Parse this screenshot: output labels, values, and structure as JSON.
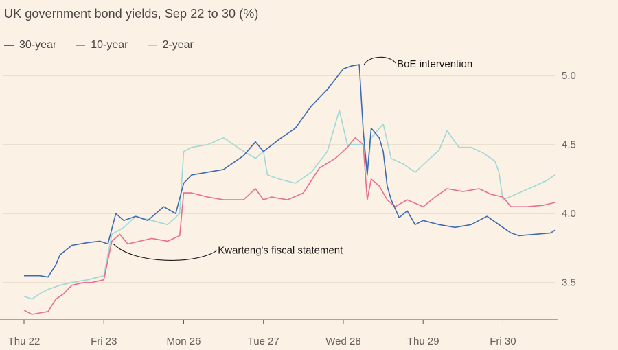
{
  "chart_data": {
    "type": "line",
    "title": "UK government bond yields, Sep 22 to 30 (%)",
    "xlabel": "",
    "ylabel": "",
    "x_ticks": [
      "Thu 22",
      "Fri 23",
      "Mon 26",
      "Tue 27",
      "Wed 28",
      "Thu 29",
      "Fri 30"
    ],
    "y_ticks": [
      "3.5",
      "4.0",
      "4.5",
      "5.0"
    ],
    "ylim": [
      3.23,
      5.2
    ],
    "grid": true,
    "legend_position": "top-left",
    "series": [
      {
        "name": "30-year",
        "color": "#3d6bb3",
        "x": [
          0,
          0.1,
          0.2,
          0.3,
          0.4,
          0.45,
          0.6,
          0.8,
          0.95,
          1.05,
          1.15,
          1.25,
          1.4,
          1.55,
          1.75,
          1.9,
          2.0,
          2.1,
          2.3,
          2.5,
          2.75,
          2.9,
          3.0,
          3.2,
          3.4,
          3.6,
          3.8,
          4.0,
          4.1,
          4.2,
          4.25,
          4.3,
          4.35,
          4.45,
          4.5,
          4.55,
          4.6,
          4.7,
          4.8,
          4.9,
          5.0,
          5.2,
          5.4,
          5.6,
          5.8,
          6.0,
          6.1,
          6.2,
          6.4,
          6.6,
          6.65
        ],
        "values": [
          3.55,
          3.55,
          3.55,
          3.54,
          3.63,
          3.7,
          3.77,
          3.79,
          3.8,
          3.78,
          4.0,
          3.95,
          3.98,
          3.95,
          4.05,
          4.0,
          4.22,
          4.28,
          4.3,
          4.32,
          4.42,
          4.52,
          4.45,
          4.54,
          4.62,
          4.78,
          4.9,
          5.05,
          5.07,
          5.08,
          4.6,
          4.28,
          4.62,
          4.55,
          4.45,
          4.2,
          4.1,
          3.97,
          4.02,
          3.92,
          3.95,
          3.92,
          3.9,
          3.92,
          3.98,
          3.9,
          3.86,
          3.84,
          3.85,
          3.86,
          3.88
        ]
      },
      {
        "name": "10-year",
        "color": "#e86f8d",
        "x": [
          0,
          0.1,
          0.2,
          0.3,
          0.4,
          0.5,
          0.6,
          0.75,
          0.85,
          1.0,
          1.1,
          1.2,
          1.3,
          1.45,
          1.6,
          1.8,
          1.95,
          2.0,
          2.1,
          2.3,
          2.5,
          2.75,
          2.9,
          3.0,
          3.1,
          3.3,
          3.5,
          3.7,
          3.9,
          4.05,
          4.15,
          4.25,
          4.3,
          4.35,
          4.45,
          4.55,
          4.65,
          4.8,
          5.0,
          5.15,
          5.3,
          5.5,
          5.7,
          5.85,
          6.0,
          6.1,
          6.3,
          6.5,
          6.65
        ],
        "values": [
          3.3,
          3.27,
          3.28,
          3.29,
          3.38,
          3.42,
          3.48,
          3.5,
          3.5,
          3.52,
          3.8,
          3.85,
          3.78,
          3.8,
          3.82,
          3.8,
          3.84,
          4.15,
          4.15,
          4.12,
          4.1,
          4.1,
          4.18,
          4.1,
          4.12,
          4.1,
          4.15,
          4.33,
          4.4,
          4.48,
          4.55,
          4.5,
          4.1,
          4.25,
          4.2,
          4.1,
          4.05,
          4.1,
          4.05,
          4.12,
          4.18,
          4.16,
          4.18,
          4.14,
          4.12,
          4.05,
          4.05,
          4.06,
          4.08
        ]
      },
      {
        "name": "2-year",
        "color": "#9ed9d8",
        "x": [
          0,
          0.1,
          0.2,
          0.3,
          0.45,
          0.6,
          0.8,
          1.0,
          1.1,
          1.25,
          1.4,
          1.6,
          1.8,
          1.95,
          2.0,
          2.1,
          2.3,
          2.5,
          2.7,
          2.9,
          3.0,
          3.05,
          3.2,
          3.4,
          3.6,
          3.8,
          3.95,
          4.05,
          4.15,
          4.25,
          4.3,
          4.35,
          4.5,
          4.6,
          4.75,
          4.9,
          5.05,
          5.2,
          5.3,
          5.45,
          5.6,
          5.75,
          5.9,
          5.95,
          6.0,
          6.2,
          6.4,
          6.55,
          6.65
        ],
        "values": [
          3.4,
          3.38,
          3.42,
          3.45,
          3.48,
          3.5,
          3.52,
          3.55,
          3.85,
          3.9,
          3.98,
          3.95,
          3.92,
          4.0,
          4.45,
          4.48,
          4.5,
          4.55,
          4.47,
          4.4,
          4.45,
          4.28,
          4.25,
          4.22,
          4.3,
          4.45,
          4.75,
          4.5,
          4.5,
          4.5,
          4.3,
          4.55,
          4.65,
          4.4,
          4.36,
          4.3,
          4.38,
          4.46,
          4.6,
          4.48,
          4.48,
          4.44,
          4.38,
          4.3,
          4.1,
          4.15,
          4.2,
          4.24,
          4.28
        ]
      }
    ],
    "annotations": [
      {
        "text": "BoE intervention",
        "x": 4.26,
        "y": 5.08
      },
      {
        "text": "Kwarteng's fiscal statement",
        "x": 1.12,
        "y": 3.78
      }
    ]
  }
}
